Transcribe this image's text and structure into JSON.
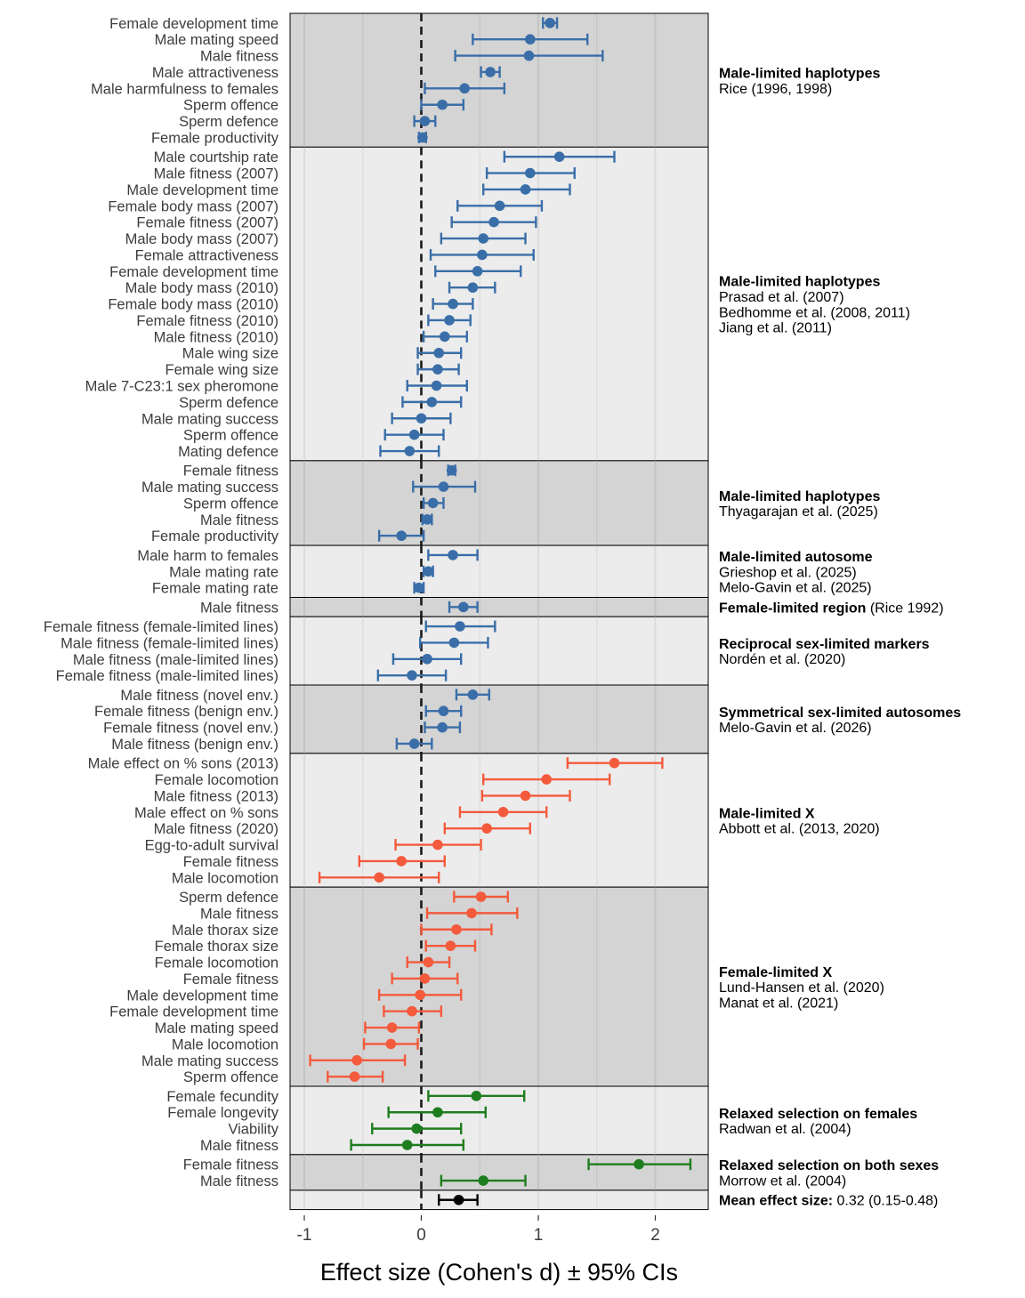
{
  "chart_data": {
    "type": "forest",
    "xlabel": "Effect size (Cohen's d) ± 95% CIs",
    "xlim": [
      -1.1,
      2.45
    ],
    "xticks": [
      -1,
      0,
      1,
      2
    ],
    "xtick_labels": [
      "-1",
      "0",
      "1",
      "2"
    ],
    "reference_line_x": 0,
    "colors": {
      "blue": "#3a6ea8",
      "red": "#f45a3c",
      "green": "#1e7d1e",
      "black": "#000000",
      "panel_dark": "#d4d4d4",
      "panel_light": "#ececec",
      "grid_dark": "#c2c2c2",
      "grid_light": "#dadada"
    },
    "groups": [
      {
        "name": "Male-limited haplotypes",
        "refs": [
          "Rice (1996, 1998)"
        ],
        "shade": "dark",
        "color": "blue",
        "rows": [
          {
            "label": "Female development time",
            "d": 1.1,
            "lo": 1.04,
            "hi": 1.16
          },
          {
            "label": "Male mating speed",
            "d": 0.93,
            "lo": 0.44,
            "hi": 1.42
          },
          {
            "label": "Male fitness",
            "d": 0.92,
            "lo": 0.29,
            "hi": 1.55
          },
          {
            "label": "Male attractiveness",
            "d": 0.59,
            "lo": 0.51,
            "hi": 0.67
          },
          {
            "label": "Male harmfulness to females",
            "d": 0.37,
            "lo": 0.03,
            "hi": 0.71
          },
          {
            "label": "Sperm offence",
            "d": 0.18,
            "lo": 0.0,
            "hi": 0.36
          },
          {
            "label": "Sperm defence",
            "d": 0.03,
            "lo": -0.06,
            "hi": 0.12
          },
          {
            "label": "Female productivity",
            "d": 0.01,
            "lo": -0.02,
            "hi": 0.04
          }
        ]
      },
      {
        "name": "Male-limited haplotypes",
        "refs": [
          "Prasad et al. (2007)",
          "Bedhomme et al. (2008, 2011)",
          "Jiang et al. (2011)"
        ],
        "shade": "light",
        "color": "blue",
        "rows": [
          {
            "label": "Male courtship rate",
            "d": 1.18,
            "lo": 0.71,
            "hi": 1.65
          },
          {
            "label": "Male fitness (2007)",
            "d": 0.93,
            "lo": 0.56,
            "hi": 1.31
          },
          {
            "label": "Male development time",
            "d": 0.89,
            "lo": 0.53,
            "hi": 1.27
          },
          {
            "label": "Female body mass (2007)",
            "d": 0.67,
            "lo": 0.31,
            "hi": 1.03
          },
          {
            "label": "Female fitness (2007)",
            "d": 0.62,
            "lo": 0.26,
            "hi": 0.98
          },
          {
            "label": "Male body mass (2007)",
            "d": 0.53,
            "lo": 0.17,
            "hi": 0.89
          },
          {
            "label": "Female attractiveness",
            "d": 0.52,
            "lo": 0.08,
            "hi": 0.96
          },
          {
            "label": "Female development time",
            "d": 0.48,
            "lo": 0.12,
            "hi": 0.85
          },
          {
            "label": "Male body mass (2010)",
            "d": 0.44,
            "lo": 0.24,
            "hi": 0.63
          },
          {
            "label": "Female body mass (2010)",
            "d": 0.27,
            "lo": 0.1,
            "hi": 0.44
          },
          {
            "label": "Female fitness (2010)",
            "d": 0.24,
            "lo": 0.06,
            "hi": 0.42
          },
          {
            "label": "Male fitness (2010)",
            "d": 0.2,
            "lo": 0.02,
            "hi": 0.39
          },
          {
            "label": "Male wing size",
            "d": 0.15,
            "lo": -0.03,
            "hi": 0.34
          },
          {
            "label": "Female wing size",
            "d": 0.14,
            "lo": -0.03,
            "hi": 0.32
          },
          {
            "label": "Male 7-C23:1 sex pheromone",
            "d": 0.13,
            "lo": -0.12,
            "hi": 0.39
          },
          {
            "label": "Sperm defence",
            "d": 0.09,
            "lo": -0.16,
            "hi": 0.34
          },
          {
            "label": "Male mating success",
            "d": 0.0,
            "lo": -0.25,
            "hi": 0.25
          },
          {
            "label": "Sperm offence",
            "d": -0.06,
            "lo": -0.31,
            "hi": 0.19
          },
          {
            "label": "Mating defence",
            "d": -0.1,
            "lo": -0.35,
            "hi": 0.15
          }
        ]
      },
      {
        "name": "Male-limited haplotypes",
        "refs": [
          "Thyagarajan et al. (2025)"
        ],
        "shade": "dark",
        "color": "blue",
        "rows": [
          {
            "label": "Female fitness",
            "d": 0.26,
            "lo": 0.23,
            "hi": 0.29
          },
          {
            "label": "Male mating success",
            "d": 0.19,
            "lo": -0.07,
            "hi": 0.46
          },
          {
            "label": "Sperm offence",
            "d": 0.1,
            "lo": 0.02,
            "hi": 0.19
          },
          {
            "label": "Male fitness",
            "d": 0.05,
            "lo": 0.01,
            "hi": 0.09
          },
          {
            "label": "Female productivity",
            "d": -0.17,
            "lo": -0.36,
            "hi": 0.02
          }
        ]
      },
      {
        "name": "Male-limited autosome",
        "refs": [
          "Grieshop et al. (2025)",
          "Melo-Gavin et al. (2025)"
        ],
        "shade": "light",
        "color": "blue",
        "rows": [
          {
            "label": "Male harm to females",
            "d": 0.27,
            "lo": 0.06,
            "hi": 0.48
          },
          {
            "label": "Male mating rate",
            "d": 0.06,
            "lo": 0.02,
            "hi": 0.1
          },
          {
            "label": "Female mating rate",
            "d": -0.02,
            "lo": -0.06,
            "hi": 0.02
          }
        ]
      },
      {
        "name": "Female-limited region",
        "refs": [],
        "inline_ref": " (Rice 1992)",
        "shade": "dark",
        "color": "blue",
        "rows": [
          {
            "label": "Male fitness",
            "d": 0.36,
            "lo": 0.24,
            "hi": 0.48
          }
        ]
      },
      {
        "name": "Reciprocal sex-limited markers",
        "refs": [
          "Nordén et al. (2020)"
        ],
        "shade": "light",
        "color": "blue",
        "rows": [
          {
            "label": "Female fitness (female-limited lines)",
            "d": 0.33,
            "lo": 0.04,
            "hi": 0.63
          },
          {
            "label": "Male fitness (female-limited lines)",
            "d": 0.28,
            "lo": -0.01,
            "hi": 0.57
          },
          {
            "label": "Male fitness (male-limited lines)",
            "d": 0.05,
            "lo": -0.24,
            "hi": 0.34
          },
          {
            "label": "Female fitness (male-limited lines)",
            "d": -0.08,
            "lo": -0.37,
            "hi": 0.21
          }
        ]
      },
      {
        "name": "Symmetrical sex-limited autosomes",
        "refs": [
          "Melo-Gavin et al. (2026)"
        ],
        "shade": "dark",
        "color": "blue",
        "rows": [
          {
            "label": "Male fitness (novel env.)",
            "d": 0.44,
            "lo": 0.3,
            "hi": 0.58
          },
          {
            "label": "Female fitness (benign env.)",
            "d": 0.19,
            "lo": 0.04,
            "hi": 0.34
          },
          {
            "label": "Female fitness (novel env.)",
            "d": 0.18,
            "lo": 0.03,
            "hi": 0.33
          },
          {
            "label": "Male fitness (benign env.)",
            "d": -0.06,
            "lo": -0.21,
            "hi": 0.09
          }
        ]
      },
      {
        "name": "Male-limited X",
        "refs": [
          "Abbott et al. (2013, 2020)"
        ],
        "shade": "light",
        "color": "red",
        "rows": [
          {
            "label": "Male effect on % sons (2013)",
            "d": 1.65,
            "lo": 1.25,
            "hi": 2.06
          },
          {
            "label": "Female locomotion",
            "d": 1.07,
            "lo": 0.53,
            "hi": 1.61
          },
          {
            "label": "Male fitness (2013)",
            "d": 0.89,
            "lo": 0.52,
            "hi": 1.27
          },
          {
            "label": "Male effect on % sons",
            "d": 0.7,
            "lo": 0.33,
            "hi": 1.07
          },
          {
            "label": "Male fitness (2020)",
            "d": 0.56,
            "lo": 0.2,
            "hi": 0.93
          },
          {
            "label": "Egg-to-adult survival",
            "d": 0.14,
            "lo": -0.22,
            "hi": 0.51
          },
          {
            "label": "Female fitness",
            "d": -0.17,
            "lo": -0.53,
            "hi": 0.2
          },
          {
            "label": "Male locomotion",
            "d": -0.36,
            "lo": -0.87,
            "hi": 0.15
          }
        ]
      },
      {
        "name": "Female-limited X",
        "refs": [
          "Lund-Hansen et al. (2020)",
          "Manat et al. (2021)"
        ],
        "shade": "dark",
        "color": "red",
        "rows": [
          {
            "label": "Sperm defence",
            "d": 0.51,
            "lo": 0.28,
            "hi": 0.74
          },
          {
            "label": "Male fitness",
            "d": 0.43,
            "lo": 0.05,
            "hi": 0.82
          },
          {
            "label": "Male thorax size",
            "d": 0.3,
            "lo": 0.0,
            "hi": 0.6
          },
          {
            "label": "Female thorax size",
            "d": 0.25,
            "lo": 0.04,
            "hi": 0.46
          },
          {
            "label": "Female locomotion",
            "d": 0.06,
            "lo": -0.12,
            "hi": 0.24
          },
          {
            "label": "Female fitness",
            "d": 0.03,
            "lo": -0.25,
            "hi": 0.31
          },
          {
            "label": "Male development time",
            "d": -0.01,
            "lo": -0.36,
            "hi": 0.34
          },
          {
            "label": "Female development time",
            "d": -0.08,
            "lo": -0.32,
            "hi": 0.17
          },
          {
            "label": "Male mating speed",
            "d": -0.25,
            "lo": -0.48,
            "hi": -0.02
          },
          {
            "label": "Male locomotion",
            "d": -0.26,
            "lo": -0.49,
            "hi": -0.03
          },
          {
            "label": "Male mating success",
            "d": -0.55,
            "lo": -0.95,
            "hi": -0.14
          },
          {
            "label": "Sperm offence",
            "d": -0.57,
            "lo": -0.8,
            "hi": -0.33
          }
        ]
      },
      {
        "name": "Relaxed selection on females",
        "refs": [
          "Radwan et al. (2004)"
        ],
        "shade": "light",
        "color": "green",
        "rows": [
          {
            "label": "Female fecundity",
            "d": 0.47,
            "lo": 0.06,
            "hi": 0.88
          },
          {
            "label": "Female longevity",
            "d": 0.14,
            "lo": -0.28,
            "hi": 0.55
          },
          {
            "label": "Viability",
            "d": -0.04,
            "lo": -0.42,
            "hi": 0.34
          },
          {
            "label": "Male fitness",
            "d": -0.12,
            "lo": -0.6,
            "hi": 0.36
          }
        ]
      },
      {
        "name": "Relaxed selection on both sexes",
        "refs": [
          "Morrow et al. (2004)"
        ],
        "shade": "dark",
        "color": "green",
        "rows": [
          {
            "label": "Female fitness",
            "d": 1.86,
            "lo": 1.43,
            "hi": 2.3
          },
          {
            "label": "Male fitness",
            "d": 0.53,
            "lo": 0.17,
            "hi": 0.89
          }
        ]
      },
      {
        "name": "Mean effect size:",
        "refs": [],
        "inline_ref": " 0.32 (0.15-0.48)",
        "shade": "light",
        "color": "black",
        "rows": [
          {
            "label": "",
            "d": 0.32,
            "lo": 0.15,
            "hi": 0.48
          }
        ]
      }
    ]
  }
}
